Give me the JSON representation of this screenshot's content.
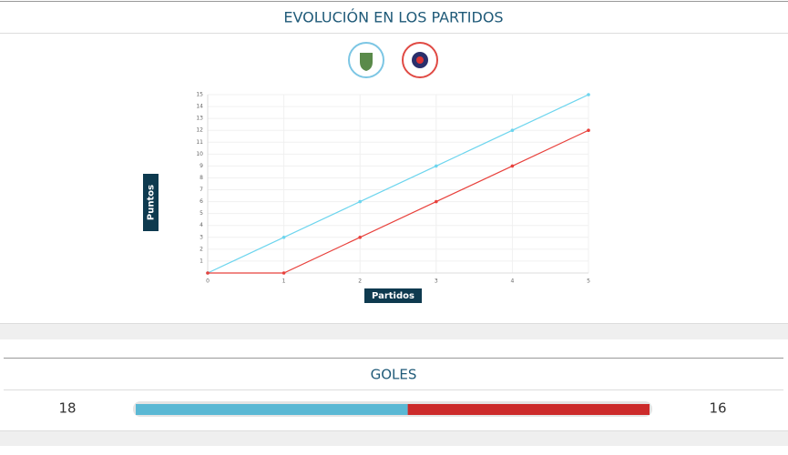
{
  "header": {
    "title": "EVOLUCIÓN EN LOS PARTIDOS"
  },
  "chart_data": {
    "type": "line",
    "x_label": "Partidos",
    "y_label": "Puntos",
    "x": [
      0,
      1,
      2,
      3,
      4,
      5
    ],
    "series": [
      {
        "color": "#6dd5ee",
        "values": [
          0,
          3,
          6,
          9,
          12,
          15
        ]
      },
      {
        "color": "#e8413c",
        "values": [
          0,
          0,
          3,
          6,
          9,
          12
        ]
      }
    ],
    "xlim": [
      0,
      5
    ],
    "xticks": [
      0,
      1,
      2,
      3,
      4,
      5
    ],
    "ylim": [
      0,
      15
    ],
    "yticks": [
      1,
      2,
      3,
      4,
      5,
      6,
      7,
      8,
      9,
      10,
      11,
      12,
      13,
      14,
      15
    ],
    "grid": true
  },
  "goles": {
    "title": "GOLES",
    "home": 18,
    "away": 16
  }
}
